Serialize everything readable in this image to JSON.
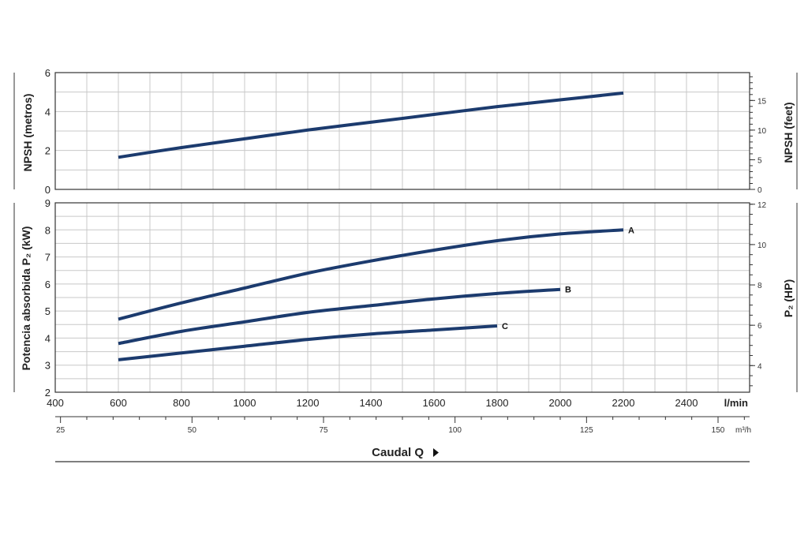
{
  "chart_data": [
    {
      "type": "line",
      "ylabel": "NPSH (metros)",
      "ylabel_right": "NPSH (feet)",
      "ylim": [
        0,
        6
      ],
      "yticks": [
        "0",
        "2",
        "4",
        "6"
      ],
      "ylim_right": [
        0,
        19.7
      ],
      "yticks_right": [
        "0",
        "5",
        "10",
        "15"
      ],
      "grid": true,
      "series": [
        {
          "x": [
            600,
            800,
            1000,
            1200,
            1400,
            1600,
            1800,
            2000,
            2200
          ],
          "values": [
            1.65,
            2.15,
            2.6,
            3.05,
            3.45,
            3.85,
            4.25,
            4.6,
            4.95
          ]
        }
      ]
    },
    {
      "type": "line",
      "ylabel": "Potencia absorbida P₂ (kW)",
      "ylabel_right": "P₂ (HP)",
      "ylim": [
        2,
        9
      ],
      "yticks": [
        "2",
        "3",
        "4",
        "5",
        "6",
        "7",
        "8",
        "9"
      ],
      "ylim_right": [
        2.68,
        12.07
      ],
      "yticks_right": [
        "4",
        "6",
        "8",
        "10",
        "12"
      ],
      "grid": true,
      "xlim": [
        400,
        2600
      ],
      "xticks": [
        "400",
        "600",
        "800",
        "1000",
        "1200",
        "1400",
        "1600",
        "1800",
        "2000",
        "2200",
        "2400"
      ],
      "xunit": "l/min",
      "x2ticks": [
        "25",
        "50",
        "75",
        "100",
        "125",
        "150"
      ],
      "x2unit": "m³/h",
      "xlabel": "Caudal Q",
      "series": [
        {
          "name": "A",
          "x": [
            600,
            800,
            1000,
            1200,
            1400,
            1600,
            1800,
            2000,
            2200
          ],
          "values": [
            4.7,
            5.3,
            5.85,
            6.4,
            6.85,
            7.25,
            7.6,
            7.85,
            8.0
          ]
        },
        {
          "name": "B",
          "x": [
            600,
            800,
            1000,
            1200,
            1400,
            1600,
            1800,
            2000
          ],
          "values": [
            3.8,
            4.25,
            4.6,
            4.95,
            5.2,
            5.45,
            5.65,
            5.8
          ]
        },
        {
          "name": "C",
          "x": [
            600,
            800,
            1000,
            1200,
            1400,
            1600,
            1800
          ],
          "values": [
            3.2,
            3.45,
            3.7,
            3.95,
            4.15,
            4.3,
            4.45
          ]
        }
      ]
    }
  ],
  "colors": {
    "curve": "#1c3b6e",
    "grid": "#c8c8c8",
    "axis": "#333333"
  },
  "icons": {
    "flow_arrow": "triangle-right-icon"
  }
}
